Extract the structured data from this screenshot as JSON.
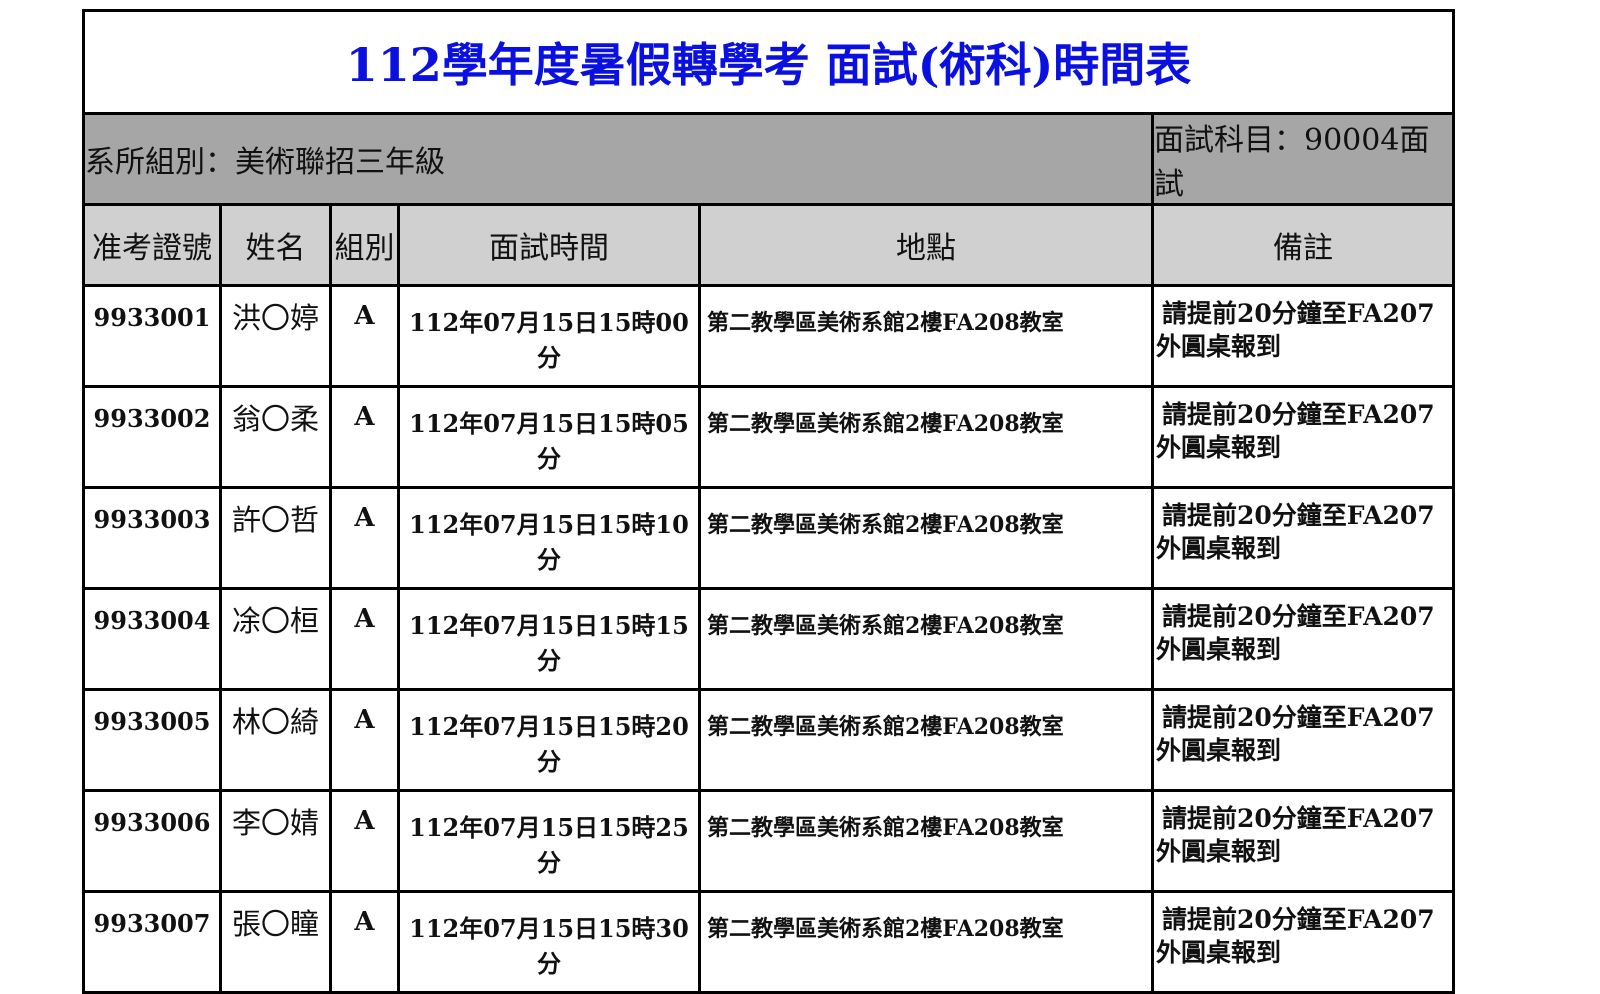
{
  "title": "112學年度暑假轉學考 面試(術科)時間表",
  "info": {
    "department": "系所組別：美術聯招三年級",
    "subject": "面試科目：90004面試"
  },
  "columns": [
    "准考證號",
    "姓名",
    "組別",
    "面試時間",
    "地點",
    "備註"
  ],
  "rows": [
    {
      "id": "9933001",
      "name": "洪〇婷",
      "group": "A",
      "time": "112年07月15日15時00分",
      "location": "第二教學區美術系館2樓FA208教室",
      "note1": "請提前20分鐘至FA207",
      "note2": "外圓桌報到"
    },
    {
      "id": "9933002",
      "name": "翁〇柔",
      "group": "A",
      "time": "112年07月15日15時05分",
      "location": "第二教學區美術系館2樓FA208教室",
      "note1": "請提前20分鐘至FA207",
      "note2": "外圓桌報到"
    },
    {
      "id": "9933003",
      "name": "許〇哲",
      "group": "A",
      "time": "112年07月15日15時10分",
      "location": "第二教學區美術系館2樓FA208教室",
      "note1": "請提前20分鐘至FA207",
      "note2": "外圓桌報到"
    },
    {
      "id": "9933004",
      "name": "凃〇桓",
      "group": "A",
      "time": "112年07月15日15時15分",
      "location": "第二教學區美術系館2樓FA208教室",
      "note1": "請提前20分鐘至FA207",
      "note2": "外圓桌報到"
    },
    {
      "id": "9933005",
      "name": "林〇綺",
      "group": "A",
      "time": "112年07月15日15時20分",
      "location": "第二教學區美術系館2樓FA208教室",
      "note1": "請提前20分鐘至FA207",
      "note2": "外圓桌報到"
    },
    {
      "id": "9933006",
      "name": "李〇婧",
      "group": "A",
      "time": "112年07月15日15時25分",
      "location": "第二教學區美術系館2樓FA208教室",
      "note1": "請提前20分鐘至FA207",
      "note2": "外圓桌報到"
    },
    {
      "id": "9933007",
      "name": "張〇瞳",
      "group": "A",
      "time": "112年07月15日15時30分",
      "location": "第二教學區美術系館2樓FA208教室",
      "note1": "請提前20分鐘至FA207",
      "note2": "外圓桌報到"
    }
  ],
  "colors": {
    "title": "#0a10e0",
    "info_bg": "#a6a6a6",
    "header_bg": "#d0d0d0"
  }
}
